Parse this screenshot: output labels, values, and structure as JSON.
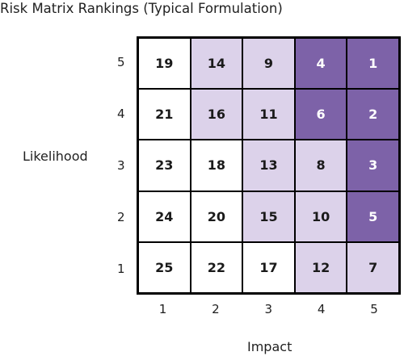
{
  "chart_data": {
    "type": "heatmap",
    "title": "Risk Matrix Rankings (Typical Formulation)",
    "xlabel": "Impact",
    "ylabel": "Likelihood",
    "x_ticks": [
      "1",
      "2",
      "3",
      "4",
      "5"
    ],
    "y_ticks": [
      "5",
      "4",
      "3",
      "2",
      "1"
    ],
    "rows": [
      {
        "likelihood": "5",
        "values": [
          19,
          14,
          9,
          4,
          1
        ],
        "levels": [
          0,
          1,
          1,
          2,
          2
        ]
      },
      {
        "likelihood": "4",
        "values": [
          21,
          16,
          11,
          6,
          2
        ],
        "levels": [
          0,
          1,
          1,
          2,
          2
        ]
      },
      {
        "likelihood": "3",
        "values": [
          23,
          18,
          13,
          8,
          3
        ],
        "levels": [
          0,
          0,
          1,
          1,
          2
        ]
      },
      {
        "likelihood": "2",
        "values": [
          24,
          20,
          15,
          10,
          5
        ],
        "levels": [
          0,
          0,
          1,
          1,
          2
        ]
      },
      {
        "likelihood": "1",
        "values": [
          25,
          22,
          17,
          12,
          7
        ],
        "levels": [
          0,
          0,
          0,
          1,
          1
        ]
      }
    ],
    "level_colors": [
      "#ffffff",
      "#dcd2ea",
      "#7d62a8"
    ],
    "grid": true
  }
}
